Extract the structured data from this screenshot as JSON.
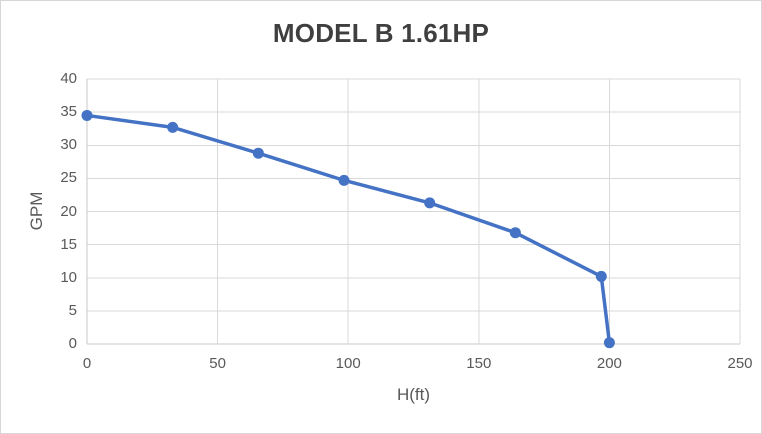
{
  "chart_data": {
    "type": "line",
    "title": "MODEL B 1.61HP",
    "xlabel": "H(ft)",
    "ylabel": "GPM",
    "xlim": [
      0,
      250
    ],
    "ylim": [
      0,
      40
    ],
    "x_ticks": [
      0,
      50,
      100,
      150,
      200,
      250
    ],
    "y_ticks": [
      0,
      5,
      10,
      15,
      20,
      25,
      30,
      35,
      40
    ],
    "grid": true,
    "legend": false,
    "series": [
      {
        "x": [
          0,
          32.8,
          65.6,
          98.4,
          131.2,
          164,
          196.9,
          200
        ],
        "y": [
          34.5,
          32.7,
          28.8,
          24.7,
          21.3,
          16.8,
          10.2,
          0.2
        ],
        "color": "#4472C4",
        "marker": "circle"
      }
    ]
  },
  "colors": {
    "line": "#4472C4",
    "gridline": "#D9D9D9",
    "axis_line": "#C9C9C9",
    "tick_text": "#595959",
    "title_text": "#3F3F3F",
    "background": "#FFFFFF",
    "chart_border": "#D7D7D7"
  }
}
